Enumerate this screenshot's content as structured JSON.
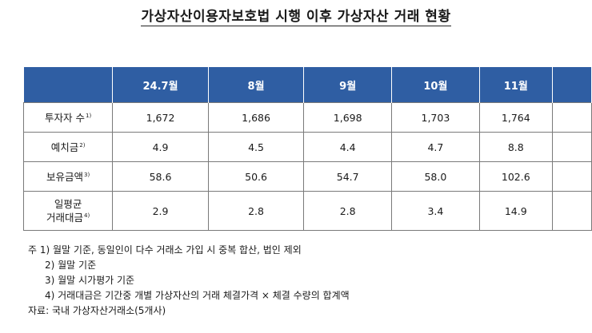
{
  "title": "가상자산이용자보호법 시행 이후 가상자산 거래 현황",
  "table": {
    "columns": [
      "24.7월",
      "8월",
      "9월",
      "10월",
      "11월"
    ],
    "rows": [
      {
        "label": "투자자 수",
        "note": "1)",
        "values": [
          "1,672",
          "1,686",
          "1,698",
          "1,703",
          "1,764"
        ]
      },
      {
        "label": "예치금",
        "note": "2)",
        "values": [
          "4.9",
          "4.5",
          "4.4",
          "4.7",
          "8.8"
        ]
      },
      {
        "label": "보유금액",
        "note": "3)",
        "values": [
          "58.6",
          "50.6",
          "54.7",
          "58.0",
          "102.6"
        ]
      },
      {
        "label_line1": "일평균",
        "label_line2": "거래대금",
        "note": "4)",
        "values": [
          "2.9",
          "2.8",
          "2.8",
          "3.4",
          "14.9"
        ]
      }
    ]
  },
  "notes": {
    "prefix": "주",
    "items": [
      "1) 월말 기준, 동일인이 다수 거래소 가입 시 중복 합산, 법인 제외",
      "2) 월말 기준",
      "3) 월말 시가평가 기준",
      "4) 거래대금은 기간중 개별 가상자산의 거래 체결가격 × 체결 수량의 합계액"
    ],
    "source": "자료: 국내 가상자산거래소(5개사)"
  }
}
